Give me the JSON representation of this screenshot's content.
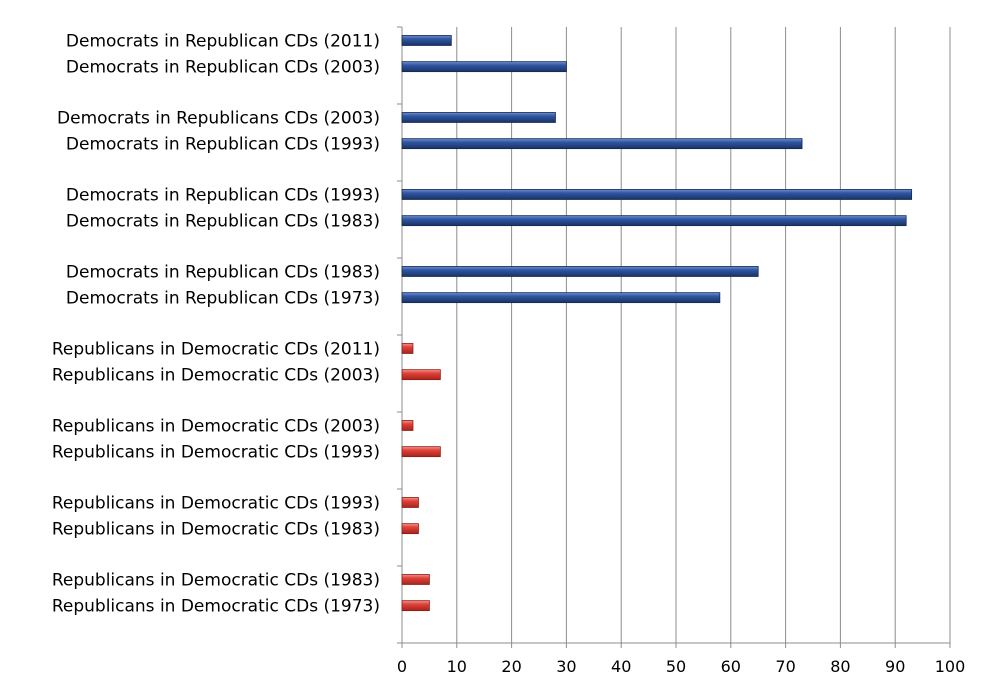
{
  "chart_data": {
    "type": "bar",
    "orientation": "horizontal",
    "title": "",
    "xlabel": "",
    "ylabel": "",
    "xlim": [
      0,
      100
    ],
    "xticks": [
      0,
      10,
      20,
      30,
      40,
      50,
      60,
      70,
      80,
      90,
      100
    ],
    "grid": "vertical",
    "legend": "none",
    "groups": [
      [
        {
          "label": "Democrats in Republican CDs (2011)",
          "value": 9,
          "color": "#2a4d8f"
        },
        {
          "label": "Democrats in Republican CDs (2003)",
          "value": 30,
          "color": "#2a4d8f"
        }
      ],
      [
        {
          "label": "Democrats in Republicans CDs (2003)",
          "value": 28,
          "color": "#2a4d8f"
        },
        {
          "label": "Democrats in Republican CDs (1993)",
          "value": 73,
          "color": "#2a4d8f"
        }
      ],
      [
        {
          "label": "Democrats in Republican CDs (1993)",
          "value": 93,
          "color": "#2a4d8f"
        },
        {
          "label": "Democrats in Republican CDs (1983)",
          "value": 92,
          "color": "#2a4d8f"
        }
      ],
      [
        {
          "label": "Democrats in Republican CDs (1983)",
          "value": 65,
          "color": "#2a4d8f"
        },
        {
          "label": "Democrats in Republican CDs (1973)",
          "value": 58,
          "color": "#2a4d8f"
        }
      ],
      [
        {
          "label": "Republicans in Democratic CDs (2011)",
          "value": 2,
          "color": "#d93a32"
        },
        {
          "label": "Republicans in Democratic CDs (2003)",
          "value": 7,
          "color": "#d93a32"
        }
      ],
      [
        {
          "label": "Republicans in Democratic CDs (2003)",
          "value": 2,
          "color": "#d93a32"
        },
        {
          "label": "Republicans in Democratic CDs (1993)",
          "value": 7,
          "color": "#d93a32"
        }
      ],
      [
        {
          "label": "Republicans in Democratic CDs (1993)",
          "value": 3,
          "color": "#d93a32"
        },
        {
          "label": "Republicans in Democratic CDs (1983)",
          "value": 3,
          "color": "#d93a32"
        }
      ],
      [
        {
          "label": "Republicans in Democratic CDs (1983)",
          "value": 5,
          "color": "#d93a32"
        },
        {
          "label": "Republicans in Democratic CDs (1973)",
          "value": 5,
          "color": "#d93a32"
        }
      ]
    ]
  }
}
